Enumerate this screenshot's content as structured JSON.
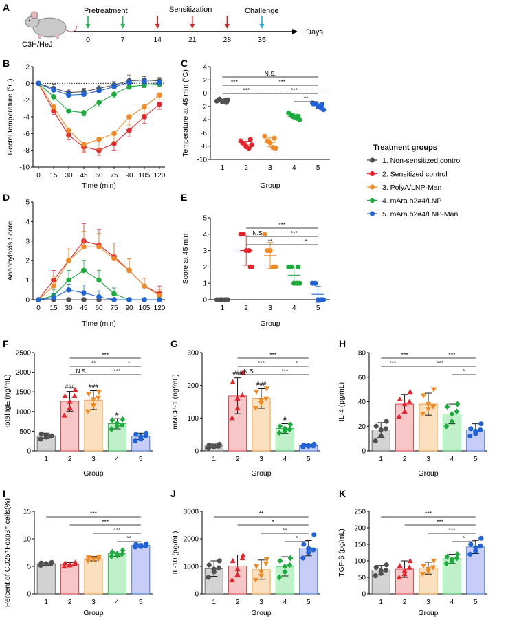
{
  "group_colors": [
    "#505050",
    "#e3242b",
    "#f08a24",
    "#1aab3c",
    "#1f63d6"
  ],
  "bar_fill": [
    "#d3d3d3",
    "#f7c6c6",
    "#fbe0c0",
    "#bff0c9",
    "#c8cdf7"
  ],
  "timeline": {
    "letter": "A",
    "strain": "C3H/HeJ",
    "pretreatment": "Pretreatment",
    "sensitization": "Sensitization",
    "challenge": "Challenge",
    "days_label": "Days",
    "ticks": [
      "0",
      "7",
      "14",
      "21",
      "28",
      "35"
    ],
    "pretreatment_days": [
      0,
      7
    ],
    "sensitization_days": [
      14,
      21,
      28
    ],
    "challenge_days": [
      35
    ]
  },
  "legend": {
    "title": "Treatment groups",
    "items": [
      "1. Non-sensitized control",
      "2. Sensitized control",
      "3. PolyA/LNP-Man",
      "4. mAra h2#4/LNP",
      "5. mAra h2#4/LNP-Man"
    ]
  },
  "chart_data": [
    {
      "id": "B",
      "type": "line",
      "ylabel": "Rectal temperature (°C)",
      "xlabel": "Time (min)",
      "x": [
        0,
        15,
        30,
        45,
        60,
        75,
        90,
        105,
        120
      ],
      "ylim": [
        -10,
        2
      ],
      "yticks": [
        "2",
        "0",
        "-2",
        "-4",
        "-6",
        "-8",
        "-10"
      ],
      "xticks": [
        "0",
        "15",
        "30",
        "45",
        "60",
        "75",
        "90",
        "105",
        "120"
      ],
      "series": [
        {
          "name": "1",
          "values": [
            0,
            -0.6,
            -1.1,
            -1.0,
            -0.6,
            -0.2,
            0.3,
            0.4,
            0.3
          ],
          "err": [
            0,
            0.5,
            0.4,
            0.4,
            0.4,
            0.4,
            0.7,
            0.4,
            0.4
          ]
        },
        {
          "name": "2",
          "values": [
            0,
            -3.3,
            -6.2,
            -7.6,
            -8.0,
            -7.2,
            -5.6,
            -4.0,
            -2.5
          ],
          "err": [
            0,
            0.4,
            0.5,
            0.6,
            0.6,
            0.8,
            0.8,
            0.8,
            0.6
          ]
        },
        {
          "name": "3",
          "values": [
            0,
            -2.8,
            -5.6,
            -7.3,
            -6.7,
            -6.0,
            -4.0,
            -2.8,
            -1.4
          ],
          "err": [
            0,
            0.5,
            0.8,
            0.7,
            1.2,
            1.0,
            1.0,
            0.9,
            0.6
          ]
        },
        {
          "name": "4",
          "values": [
            0,
            -1.6,
            -3.3,
            -3.5,
            -2.3,
            -1.3,
            -0.4,
            -0.2,
            -0.1
          ],
          "err": [
            0,
            0.4,
            0.5,
            0.4,
            0.5,
            0.4,
            0.3,
            0.3,
            0.3
          ]
        },
        {
          "name": "5",
          "values": [
            0,
            -0.8,
            -1.4,
            -1.3,
            -0.9,
            -0.4,
            0.1,
            0.2,
            0.1
          ],
          "err": [
            0,
            0.4,
            0.4,
            0.4,
            0.4,
            0.4,
            0.3,
            0.3,
            0.3
          ]
        }
      ]
    },
    {
      "id": "C",
      "type": "scatter",
      "ylabel": "Temperature at 45 min (°C)",
      "xlabel": "Group",
      "categories": [
        "1",
        "2",
        "3",
        "4",
        "5"
      ],
      "ylim": [
        -10,
        4
      ],
      "yticks": [
        "4",
        "2",
        "0",
        "-2",
        "-4",
        "-6",
        "-8",
        "-10"
      ],
      "points": [
        [
          -1.2,
          -0.9,
          -1.3,
          -1.1,
          -1.0,
          -1.4
        ],
        [
          -7.2,
          -7.6,
          -8.1,
          -8.3,
          -7.8,
          -7.0
        ],
        [
          -6.5,
          -7.2,
          -7.5,
          -8.2,
          -8.3,
          -6.8
        ],
        [
          -3.0,
          -3.3,
          -3.6,
          -3.8,
          -4.0,
          -3.5
        ],
        [
          -1.5,
          -1.6,
          -2.0,
          -2.2,
          -2.5,
          -1.7
        ]
      ],
      "mean": [
        -1.1,
        -7.7,
        -7.4,
        -3.5,
        -1.9
      ],
      "sd": [
        0.2,
        0.45,
        0.7,
        0.35,
        0.4
      ],
      "sig": [
        {
          "from": 1,
          "to": 5,
          "label": "N.S.",
          "level": 0
        },
        {
          "from": 1,
          "to": 2,
          "label": "***",
          "level": 1
        },
        {
          "from": 2,
          "to": 5,
          "label": "***",
          "level": 1
        },
        {
          "from": 1,
          "to": 3,
          "label": "***",
          "level": 2
        },
        {
          "from": 3,
          "to": 5,
          "label": "***",
          "level": 2
        },
        {
          "from": 4,
          "to": 5,
          "label": "**",
          "level": 3
        }
      ]
    },
    {
      "id": "D",
      "type": "line",
      "ylabel": "Anaphylaxis Score",
      "xlabel": "Time (min)",
      "x": [
        0,
        15,
        30,
        45,
        60,
        75,
        90,
        105,
        120
      ],
      "ylim": [
        0,
        5
      ],
      "yticks": [
        "5",
        "4",
        "3",
        "2",
        "1",
        "0"
      ],
      "xticks": [
        "0",
        "15",
        "30",
        "45",
        "60",
        "75",
        "90",
        "105",
        "120"
      ],
      "series": [
        {
          "name": "1",
          "values": [
            0,
            0,
            0,
            0,
            0,
            0,
            0,
            0,
            0
          ],
          "err": [
            0,
            0,
            0,
            0,
            0,
            0,
            0,
            0,
            0
          ]
        },
        {
          "name": "2",
          "values": [
            0,
            1.0,
            2.0,
            3.0,
            2.8,
            2.2,
            1.5,
            0.7,
            0.3
          ],
          "err": [
            0,
            0.5,
            0.6,
            0.9,
            0.8,
            0.7,
            0.6,
            0.4,
            0.4
          ]
        },
        {
          "name": "3",
          "values": [
            0,
            0.7,
            2.0,
            2.7,
            2.7,
            2.1,
            1.5,
            0.7,
            0.2
          ],
          "err": [
            0,
            0.5,
            0.6,
            0.8,
            0.7,
            0.6,
            0.6,
            0.4,
            0.3
          ]
        },
        {
          "name": "4",
          "values": [
            0,
            0.2,
            1.0,
            1.5,
            1.0,
            0.3,
            0,
            0,
            0
          ],
          "err": [
            0,
            0.3,
            0.5,
            0.5,
            0.5,
            0.3,
            0,
            0,
            0
          ]
        },
        {
          "name": "5",
          "values": [
            0,
            0.1,
            0.5,
            0.35,
            0.15,
            0,
            0,
            0,
            0
          ],
          "err": [
            0,
            0.2,
            0.3,
            0.4,
            0.3,
            0,
            0,
            0,
            0
          ]
        }
      ]
    },
    {
      "id": "E",
      "type": "scatter",
      "ylabel": "Score at 45 min",
      "xlabel": "Group",
      "categories": [
        "1",
        "2",
        "3",
        "4",
        "5"
      ],
      "ylim": [
        0,
        5
      ],
      "yticks": [
        "5",
        "4",
        "3",
        "2",
        "1",
        "0"
      ],
      "points": [
        [
          0,
          0,
          0,
          0,
          0,
          0
        ],
        [
          4,
          4,
          3,
          3,
          2,
          2
        ],
        [
          4,
          3,
          3,
          2,
          2,
          2
        ],
        [
          2,
          2,
          1,
          1,
          1,
          2
        ],
        [
          1,
          1,
          0,
          0,
          0,
          0
        ]
      ],
      "mean": [
        0,
        3.0,
        2.7,
        1.5,
        0.33
      ],
      "sd": [
        0,
        0.9,
        0.8,
        0.5,
        0.5
      ],
      "sig": [
        {
          "from": 2,
          "to": 5,
          "label": "***",
          "level": 0
        },
        {
          "from": 2,
          "to": 3,
          "label": "N.S.",
          "level": 1
        },
        {
          "from": 3,
          "to": 5,
          "label": "***",
          "level": 1
        },
        {
          "from": 2,
          "to": 4,
          "label": "**",
          "level": 2
        },
        {
          "from": 4,
          "to": 5,
          "label": "*",
          "level": 2
        }
      ]
    },
    {
      "id": "F",
      "type": "bar",
      "ylabel": "Total IgE (ng/mL)",
      "xlabel": "Group",
      "categories": [
        "1",
        "2",
        "3",
        "4",
        "5"
      ],
      "ylim": [
        0,
        2500
      ],
      "yticks": [
        "2500",
        "2000",
        "1500",
        "1000",
        "500",
        "0"
      ],
      "values": [
        380,
        1260,
        1290,
        690,
        370
      ],
      "sd": [
        70,
        250,
        240,
        130,
        80
      ],
      "points": [
        [
          300,
          350,
          400,
          430,
          380,
          370
        ],
        [
          900,
          1100,
          1250,
          1400,
          1550,
          1400
        ],
        [
          1000,
          1150,
          1300,
          1450,
          1500,
          1350
        ],
        [
          550,
          620,
          700,
          780,
          800,
          650
        ],
        [
          250,
          300,
          360,
          420,
          450,
          380
        ]
      ],
      "marker": "circle-tri-inv-diamond",
      "anno": [
        "",
        "###",
        "###",
        "#",
        ""
      ],
      "sig": [
        {
          "from": 2,
          "to": 5,
          "label": "***",
          "level": 0
        },
        {
          "from": 2,
          "to": 4,
          "label": "**",
          "level": 1
        },
        {
          "from": 4,
          "to": 5,
          "label": "*",
          "level": 1
        },
        {
          "from": 2,
          "to": 3,
          "label": "N.S.",
          "level": 2
        },
        {
          "from": 3,
          "to": 5,
          "label": "***",
          "level": 2
        }
      ]
    },
    {
      "id": "G",
      "type": "bar",
      "ylabel": "mMCP-1 (ng/mL)",
      "xlabel": "Group",
      "categories": [
        "1",
        "2",
        "3",
        "4",
        "5"
      ],
      "ylim": [
        0,
        300
      ],
      "yticks": [
        "300",
        "200",
        "100",
        "0"
      ],
      "values": [
        15,
        168,
        160,
        68,
        16
      ],
      "sd": [
        6,
        55,
        30,
        15,
        4
      ],
      "points": [
        [
          8,
          12,
          15,
          18,
          20,
          14
        ],
        [
          100,
          130,
          160,
          210,
          240,
          170
        ],
        [
          130,
          145,
          155,
          180,
          190,
          160
        ],
        [
          55,
          60,
          68,
          75,
          80,
          65
        ],
        [
          12,
          14,
          16,
          18,
          20,
          15
        ]
      ],
      "anno": [
        "",
        "###",
        "###",
        "#",
        ""
      ],
      "sig": [
        {
          "from": 2,
          "to": 5,
          "label": "***",
          "level": 0
        },
        {
          "from": 2,
          "to": 4,
          "label": "***",
          "level": 1
        },
        {
          "from": 4,
          "to": 5,
          "label": "*",
          "level": 1
        },
        {
          "from": 2,
          "to": 3,
          "label": "N.S.",
          "level": 2
        },
        {
          "from": 3,
          "to": 5,
          "label": "***",
          "level": 2
        }
      ]
    },
    {
      "id": "H",
      "type": "bar",
      "ylabel": "IL-4 (pg/mL)",
      "xlabel": "Group",
      "categories": [
        "1",
        "2",
        "3",
        "4",
        "5"
      ],
      "ylim": [
        0,
        80
      ],
      "yticks": [
        "80",
        "60",
        "40",
        "20",
        "0"
      ],
      "values": [
        17,
        38,
        38,
        30,
        17
      ],
      "sd": [
        6,
        8,
        9,
        8,
        5
      ],
      "points": [
        [
          8,
          12,
          17,
          20,
          24,
          18
        ],
        [
          28,
          32,
          38,
          42,
          48,
          40
        ],
        [
          30,
          34,
          38,
          45,
          50,
          36
        ],
        [
          20,
          24,
          30,
          36,
          38,
          32
        ],
        [
          12,
          14,
          16,
          18,
          22,
          17
        ]
      ],
      "sig": [
        {
          "from": 1,
          "to": 3,
          "label": "***",
          "level": 0
        },
        {
          "from": 3,
          "to": 5,
          "label": "***",
          "level": 0
        },
        {
          "from": 1,
          "to": 2,
          "label": "***",
          "level": 1
        },
        {
          "from": 2,
          "to": 5,
          "label": "***",
          "level": 1
        },
        {
          "from": 4,
          "to": 5,
          "label": "*",
          "level": 2
        }
      ]
    },
    {
      "id": "I",
      "type": "bar",
      "ylabel": "Percent of CD25⁺Foxp3⁺ cells(%)",
      "xlabel": "Group",
      "categories": [
        "1",
        "2",
        "3",
        "4",
        "5"
      ],
      "ylim": [
        0,
        15
      ],
      "yticks": [
        "15",
        "10",
        "5",
        "0"
      ],
      "values": [
        5.5,
        5.4,
        6.4,
        7.3,
        8.8
      ],
      "sd": [
        0.3,
        0.3,
        0.4,
        0.5,
        0.3
      ],
      "points": [
        [
          5.2,
          5.4,
          5.5,
          5.6,
          5.7,
          5.5
        ],
        [
          5.0,
          5.2,
          5.4,
          5.6,
          5.7,
          5.5
        ],
        [
          6.0,
          6.2,
          6.4,
          6.6,
          6.7,
          6.3
        ],
        [
          6.8,
          7.0,
          7.3,
          7.6,
          7.9,
          7.2
        ],
        [
          8.5,
          8.6,
          8.8,
          9.0,
          9.1,
          8.7
        ]
      ],
      "sig": [
        {
          "from": 1,
          "to": 5,
          "label": "***",
          "level": 0
        },
        {
          "from": 2,
          "to": 5,
          "label": "***",
          "level": 1
        },
        {
          "from": 3,
          "to": 5,
          "label": "***",
          "level": 2
        },
        {
          "from": 4,
          "to": 5,
          "label": "**",
          "level": 3
        }
      ]
    },
    {
      "id": "J",
      "type": "bar",
      "ylabel": "IL-10 (pg/mL)",
      "xlabel": "Group",
      "categories": [
        "1",
        "2",
        "3",
        "4",
        "5"
      ],
      "ylim": [
        0,
        3000
      ],
      "yticks": [
        "3000",
        "2000",
        "1000",
        "0"
      ],
      "values": [
        920,
        1010,
        880,
        1000,
        1660
      ],
      "sd": [
        280,
        400,
        350,
        350,
        280
      ],
      "points": [
        [
          600,
          800,
          900,
          1050,
          1200,
          950
        ],
        [
          500,
          700,
          900,
          1200,
          1400,
          1300
        ],
        [
          500,
          650,
          800,
          1000,
          1250,
          1100
        ],
        [
          600,
          800,
          1000,
          1200,
          1300,
          1050
        ],
        [
          1300,
          1500,
          1650,
          1800,
          2150,
          1600
        ]
      ],
      "sig": [
        {
          "from": 1,
          "to": 5,
          "label": "**",
          "level": 0
        },
        {
          "from": 2,
          "to": 5,
          "label": "*",
          "level": 1
        },
        {
          "from": 3,
          "to": 5,
          "label": "**",
          "level": 2
        },
        {
          "from": 4,
          "to": 5,
          "label": "*",
          "level": 3
        }
      ]
    },
    {
      "id": "K",
      "type": "bar",
      "ylabel": "TGF-β (pg/mL)",
      "xlabel": "Group",
      "categories": [
        "1",
        "2",
        "3",
        "4",
        "5"
      ],
      "ylim": [
        0,
        250
      ],
      "yticks": [
        "250",
        "200",
        "150",
        "100",
        "50",
        "0"
      ],
      "values": [
        72,
        75,
        78,
        106,
        142
      ],
      "sd": [
        14,
        25,
        18,
        14,
        20
      ],
      "points": [
        [
          55,
          62,
          70,
          80,
          88,
          72
        ],
        [
          50,
          60,
          70,
          85,
          100,
          80
        ],
        [
          60,
          68,
          75,
          85,
          100,
          80
        ],
        [
          92,
          98,
          105,
          112,
          120,
          108
        ],
        [
          120,
          130,
          140,
          150,
          168,
          145
        ]
      ],
      "sig": [
        {
          "from": 1,
          "to": 5,
          "label": "***",
          "level": 0
        },
        {
          "from": 2,
          "to": 5,
          "label": "***",
          "level": 1
        },
        {
          "from": 3,
          "to": 5,
          "label": "***",
          "level": 2
        },
        {
          "from": 4,
          "to": 5,
          "label": "*",
          "level": 3
        }
      ]
    }
  ]
}
